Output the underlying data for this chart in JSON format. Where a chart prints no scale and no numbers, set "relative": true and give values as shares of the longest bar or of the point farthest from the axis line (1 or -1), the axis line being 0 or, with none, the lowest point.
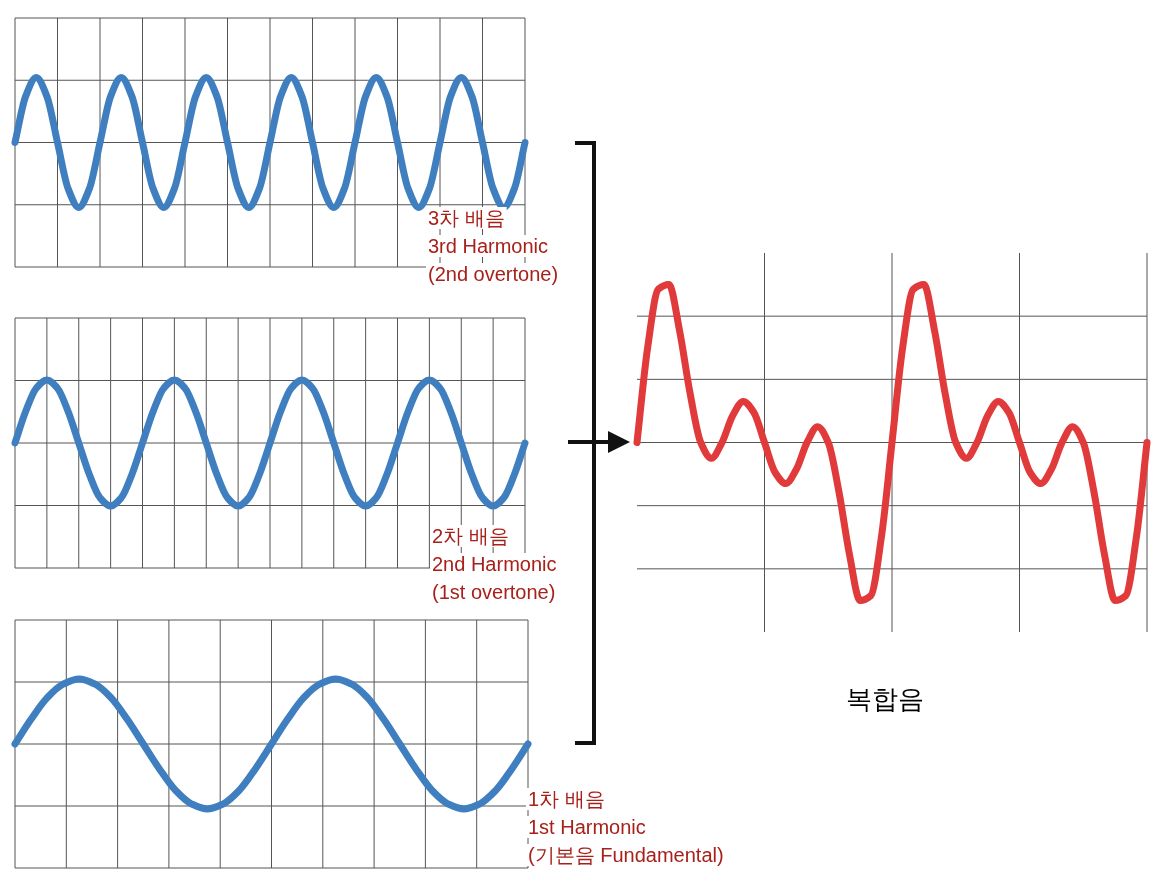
{
  "chart_data": [
    {
      "type": "line",
      "relative": true,
      "grid": true,
      "categories": [
        null,
        null,
        null,
        null,
        null,
        null,
        null,
        null,
        null,
        null,
        null,
        null,
        null,
        null,
        null,
        null,
        null,
        null,
        null,
        null,
        null,
        null,
        null,
        null,
        null,
        null,
        null,
        null,
        null,
        null,
        null,
        null,
        null,
        null,
        null,
        null,
        null,
        null,
        null,
        null,
        null,
        null,
        null,
        null,
        null,
        null,
        null,
        null,
        null
      ],
      "series": [
        {
          "color": "#3f7fc0",
          "values": [
            0,
            0.71,
            1,
            0.71,
            0,
            -0.71,
            -1,
            -0.71,
            0,
            0.71,
            1,
            0.71,
            0,
            -0.71,
            -1,
            -0.71,
            0,
            0.71,
            1,
            0.71,
            0,
            -0.71,
            -1,
            -0.71,
            0,
            0.71,
            1,
            0.71,
            0,
            -0.71,
            -1,
            -0.71,
            0,
            0.71,
            1,
            0.71,
            0,
            -0.71,
            -1,
            -0.71,
            0,
            0.71,
            1,
            0.71,
            0,
            -0.71,
            -1,
            -0.71,
            0
          ]
        }
      ],
      "annotations": [
        "3차 배음",
        "3rd Harmonic",
        "(2nd overtone)"
      ]
    },
    {
      "type": "line",
      "relative": true,
      "grid": true,
      "categories": [
        null,
        null,
        null,
        null,
        null,
        null,
        null,
        null,
        null,
        null,
        null,
        null,
        null,
        null,
        null,
        null,
        null,
        null,
        null,
        null,
        null,
        null,
        null,
        null,
        null,
        null,
        null,
        null,
        null,
        null,
        null,
        null,
        null,
        null,
        null,
        null,
        null,
        null,
        null,
        null,
        null,
        null,
        null,
        null,
        null,
        null,
        null,
        null,
        null
      ],
      "series": [
        {
          "color": "#3f7fc0",
          "values": [
            0,
            0.5,
            0.87,
            1,
            0.87,
            0.5,
            0,
            -0.5,
            -0.87,
            -1,
            -0.87,
            -0.5,
            0,
            0.5,
            0.87,
            1,
            0.87,
            0.5,
            0,
            -0.5,
            -0.87,
            -1,
            -0.87,
            -0.5,
            0,
            0.5,
            0.87,
            1,
            0.87,
            0.5,
            0,
            -0.5,
            -0.87,
            -1,
            -0.87,
            -0.5,
            0,
            0.5,
            0.87,
            1,
            0.87,
            0.5,
            0,
            -0.5,
            -0.87,
            -1,
            -0.87,
            -0.5,
            0
          ]
        }
      ],
      "annotations": [
        "2차 배음",
        "2nd Harmonic",
        "(1st overtone)"
      ]
    },
    {
      "type": "line",
      "relative": true,
      "grid": true,
      "categories": [
        null,
        null,
        null,
        null,
        null,
        null,
        null,
        null,
        null,
        null,
        null,
        null,
        null,
        null,
        null,
        null,
        null,
        null,
        null,
        null,
        null,
        null,
        null,
        null,
        null,
        null,
        null,
        null,
        null,
        null,
        null,
        null,
        null
      ],
      "series": [
        {
          "color": "#3f7fc0",
          "values": [
            0,
            0.38,
            0.71,
            0.92,
            1,
            0.92,
            0.71,
            0.38,
            0,
            -0.38,
            -0.71,
            -0.92,
            -1,
            -0.92,
            -0.71,
            -0.38,
            0,
            0.38,
            0.71,
            0.92,
            1,
            0.92,
            0.71,
            0.38,
            0,
            -0.38,
            -0.71,
            -0.92,
            -1,
            -0.92,
            -0.71,
            -0.38,
            0
          ]
        }
      ],
      "annotations": [
        "1차 배음",
        "1st Harmonic",
        "(기본음 Fundamental)"
      ]
    },
    {
      "type": "line",
      "relative": true,
      "grid": true,
      "categories": [
        null,
        null,
        null,
        null,
        null,
        null,
        null,
        null,
        null,
        null,
        null,
        null,
        null,
        null,
        null,
        null,
        null,
        null,
        null,
        null,
        null,
        null,
        null,
        null,
        null,
        null,
        null,
        null,
        null,
        null,
        null,
        null,
        null,
        null,
        null,
        null,
        null,
        null,
        null,
        null,
        null,
        null,
        null,
        null,
        null,
        null,
        null,
        null,
        null
      ],
      "series": [
        {
          "color": "#e03a3a",
          "values": [
            0,
            0.6,
            0.97,
            1,
            0.71,
            0.31,
            0,
            -0.1,
            0,
            0.17,
            0.26,
            0.19,
            0,
            -0.19,
            -0.26,
            -0.17,
            0,
            0.1,
            0,
            -0.31,
            -0.71,
            -1,
            -0.97,
            -0.6,
            0,
            0.6,
            0.97,
            1,
            0.71,
            0.31,
            0,
            -0.1,
            0,
            0.17,
            0.26,
            0.19,
            0,
            -0.19,
            -0.26,
            -0.17,
            0,
            0.1,
            0,
            -0.31,
            -0.71,
            -1,
            -0.97,
            -0.6,
            0
          ]
        }
      ],
      "annotations": [
        "복합음"
      ]
    }
  ]
}
